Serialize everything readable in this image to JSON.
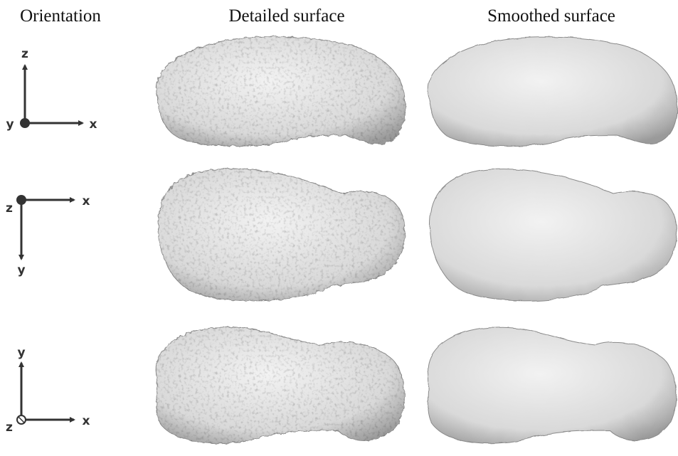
{
  "header": {
    "orientation": "Orientation",
    "detailed": "Detailed surface",
    "smoothed": "Smoothed surface"
  },
  "rows": [
    {
      "vertical": "z",
      "origin": "y",
      "horizontal": "x"
    },
    {
      "origin": "z",
      "horizontal": "x",
      "vertical": "y"
    },
    {
      "vertical": "y",
      "origin": "z",
      "horizontal": "x"
    }
  ]
}
